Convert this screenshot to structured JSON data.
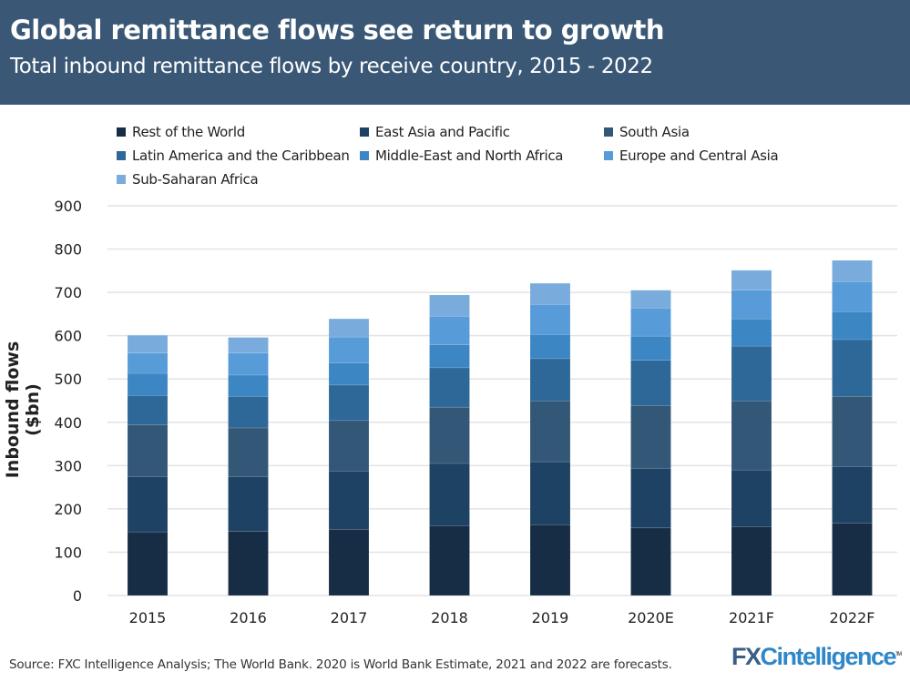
{
  "header": {
    "title": "Global remittance flows see return to growth",
    "subtitle": "Total inbound remittance flows by receive country, 2015 - 2022"
  },
  "footer": {
    "source": "Source: FXC Intelligence Analysis; The World Bank. 2020 is World Bank Estimate, 2021 and 2022 are forecasts.",
    "logo": "FXCintelligence"
  },
  "chart_data": {
    "type": "bar",
    "stacked": true,
    "title": "Global remittance flows see return to growth",
    "subtitle": "Total inbound remittance flows by receive country, 2015 - 2022",
    "xlabel": "",
    "ylabel": "Inbound flows ($bn)",
    "ylim": [
      0,
      900
    ],
    "yticks": [
      0,
      100,
      200,
      300,
      400,
      500,
      600,
      700,
      800,
      900
    ],
    "grid": true,
    "legend": "top",
    "categories": [
      "2015",
      "2016",
      "2017",
      "2018",
      "2019",
      "2020E",
      "2021F",
      "2022F"
    ],
    "series": [
      {
        "name": "Rest of the World",
        "color": "#172d45",
        "values": [
          147,
          148,
          153,
          161,
          163,
          156,
          159,
          167
        ]
      },
      {
        "name": "East Asia and Pacific",
        "color": "#1e4264",
        "values": [
          128,
          127,
          134,
          144,
          146,
          138,
          131,
          131
        ]
      },
      {
        "name": "South Asia",
        "color": "#325777",
        "values": [
          119,
          112,
          117,
          130,
          140,
          145,
          159,
          162
        ]
      },
      {
        "name": "Latin America and the Caribbean",
        "color": "#2d6898",
        "values": [
          68,
          73,
          82,
          91,
          98,
          104,
          127,
          131
        ]
      },
      {
        "name": "Middle-East and North Africa",
        "color": "#3b86c3",
        "values": [
          51,
          49,
          51,
          53,
          56,
          56,
          63,
          64
        ]
      },
      {
        "name": "Europe and Central Asia",
        "color": "#579bd9",
        "values": [
          47,
          51,
          60,
          66,
          69,
          65,
          66,
          70
        ]
      },
      {
        "name": "Sub-Saharan Africa",
        "color": "#79acdc",
        "values": [
          41,
          36,
          42,
          49,
          49,
          41,
          46,
          49
        ]
      }
    ]
  }
}
